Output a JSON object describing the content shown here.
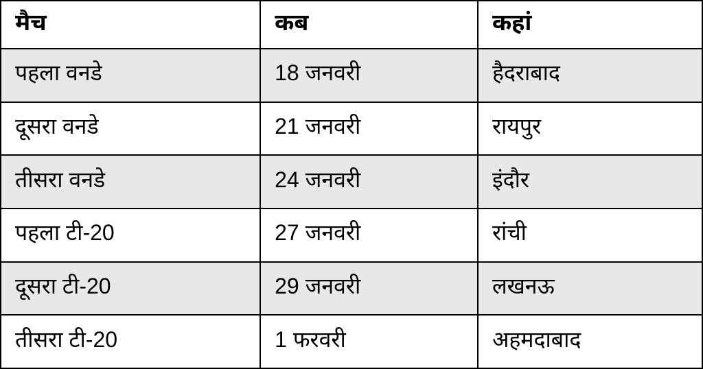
{
  "table": {
    "type": "table",
    "columns": [
      {
        "key": "match",
        "label": "मैच",
        "width": "37%"
      },
      {
        "key": "date",
        "label": "कब",
        "width": "31%"
      },
      {
        "key": "venue",
        "label": "कहां",
        "width": "32%"
      }
    ],
    "rows": [
      {
        "match": "पहला वनडे",
        "date": "18 जनवरी",
        "venue": "हैदराबाद"
      },
      {
        "match": "दूसरा वनडे",
        "date": "21 जनवरी",
        "venue": "रायपुर"
      },
      {
        "match": "तीसरा वनडे",
        "date": "24 जनवरी",
        "venue": "इंदौर"
      },
      {
        "match": "पहला टी-20",
        "date": "27 जनवरी",
        "venue": "रांची"
      },
      {
        "match": "दूसरा टी-20",
        "date": "29 जनवरी",
        "venue": "लखनऊ"
      },
      {
        "match": "तीसरा टी-20",
        "date": "1 फरवरी",
        "venue": "अहमदाबाद"
      }
    ],
    "header_fontsize": 34,
    "cell_fontsize": 32,
    "border_color": "#000000",
    "text_color": "#000000",
    "background_color": "#ffffff",
    "alt_row_color": "#e8e8e8",
    "header_background": "#ffffff"
  }
}
